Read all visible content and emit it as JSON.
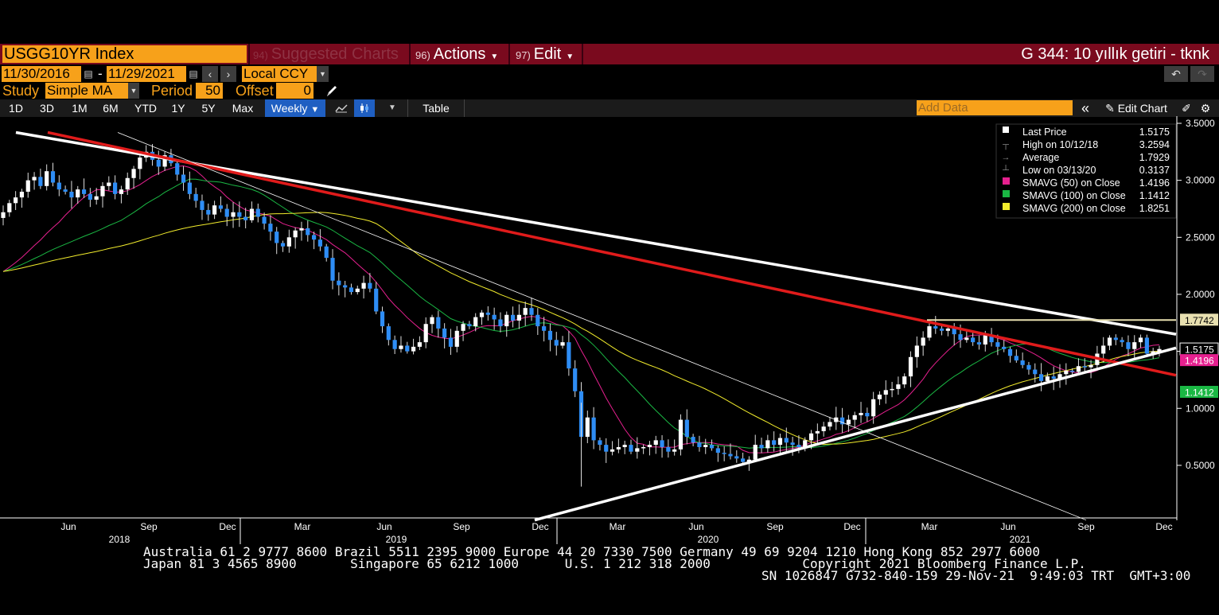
{
  "header": {
    "ticker": "USGG10YR Index",
    "menu_suggested_num": "94)",
    "menu_suggested": "Suggested Charts",
    "menu_actions_num": "96)",
    "menu_actions": "Actions",
    "menu_edit_num": "97)",
    "menu_edit": "Edit",
    "function_title": "G 344: 10 yıllık getiri - tknk"
  },
  "controls": {
    "start_date": "11/30/2016",
    "date_sep": "-",
    "end_date": "11/29/2021",
    "currency": "Local CCY",
    "study_label": "Study",
    "study_value": "Simple MA",
    "period_label": "Period",
    "period_value": "50",
    "offset_label": "Offset",
    "offset_value": "0"
  },
  "toolbar": {
    "ranges": [
      "1D",
      "3D",
      "1M",
      "6M",
      "YTD",
      "1Y",
      "5Y",
      "Max"
    ],
    "frequency": "Weekly",
    "table_label": "Table",
    "add_data_placeholder": "Add Data",
    "edit_chart_label": "Edit Chart",
    "collapse_glyph": "«"
  },
  "legend": [
    {
      "label": "Last Price",
      "value": "1.5175",
      "color": "#ffffff"
    },
    {
      "label": "High on 10/12/18",
      "value": "3.2594",
      "color": "#888888"
    },
    {
      "label": "Average",
      "value": "1.7929",
      "color": "#888888"
    },
    {
      "label": "Low on 03/13/20",
      "value": "0.3137",
      "color": "#888888"
    },
    {
      "label": "SMAVG (50)  on Close",
      "value": "1.4196",
      "color": "#e6208f"
    },
    {
      "label": "SMAVG (100)  on Close",
      "value": "1.1412",
      "color": "#1ab844"
    },
    {
      "label": "SMAVG (200)  on Close",
      "value": "1.8251",
      "color": "#f2ec2c"
    }
  ],
  "chart_data": {
    "type": "candlestick",
    "y_ticks": [
      "3.5000",
      "3.0000",
      "2.5000",
      "2.0000",
      "1.5000",
      "1.0000",
      "0.5000"
    ],
    "ylim": [
      0.0,
      3.5
    ],
    "x_ticks_month": [
      "Jun",
      "Sep",
      "Dec",
      "Mar",
      "Jun",
      "Sep",
      "Dec",
      "Mar",
      "Jun",
      "Sep",
      "Dec",
      "Mar",
      "Jun",
      "Sep",
      "Dec"
    ],
    "x_ticks_year": [
      "2018",
      "2019",
      "2020",
      "2021"
    ],
    "price_tags": [
      {
        "value": "1.7742",
        "color": "#e8e0b0",
        "text_color": "#000000"
      },
      {
        "value": "1.5175",
        "color": "#000000",
        "text_color": "#ffffff"
      },
      {
        "value": "1.4196",
        "color": "#e6208f",
        "text_color": "#ffffff"
      },
      {
        "value": "1.1412",
        "color": "#1ab844",
        "text_color": "#ffffff"
      }
    ],
    "weekly_close": [
      2.72,
      2.8,
      2.85,
      2.9,
      3.0,
      3.03,
      2.95,
      3.08,
      2.98,
      2.92,
      2.9,
      2.85,
      2.92,
      2.88,
      2.83,
      2.86,
      2.95,
      2.98,
      2.88,
      2.92,
      3.02,
      3.1,
      3.2,
      3.25,
      3.18,
      3.12,
      3.22,
      3.15,
      3.05,
      2.98,
      2.88,
      2.82,
      2.74,
      2.7,
      2.78,
      2.75,
      2.68,
      2.72,
      2.68,
      2.65,
      2.75,
      2.68,
      2.62,
      2.55,
      2.45,
      2.42,
      2.5,
      2.56,
      2.58,
      2.52,
      2.48,
      2.42,
      2.32,
      2.12,
      2.08,
      2.06,
      2.02,
      2.05,
      2.1,
      2.05,
      1.85,
      1.72,
      1.6,
      1.52,
      1.55,
      1.5,
      1.54,
      1.58,
      1.74,
      1.8,
      1.7,
      1.62,
      1.54,
      1.68,
      1.74,
      1.72,
      1.8,
      1.84,
      1.82,
      1.78,
      1.72,
      1.82,
      1.77,
      1.82,
      1.88,
      1.82,
      1.72,
      1.68,
      1.6,
      1.55,
      1.58,
      1.35,
      1.15,
      0.75,
      0.92,
      0.72,
      0.68,
      0.62,
      0.64,
      0.66,
      0.68,
      0.62,
      0.65,
      0.66,
      0.68,
      0.72,
      0.66,
      0.62,
      0.64,
      0.9,
      0.75,
      0.7,
      0.66,
      0.68,
      0.65,
      0.61,
      0.6,
      0.58,
      0.56,
      0.53,
      0.55,
      0.68,
      0.65,
      0.72,
      0.68,
      0.74,
      0.7,
      0.68,
      0.66,
      0.72,
      0.78,
      0.8,
      0.84,
      0.88,
      0.92,
      0.86,
      0.9,
      0.94,
      0.96,
      0.93,
      1.08,
      1.12,
      1.16,
      1.17,
      1.21,
      1.28,
      1.45,
      1.55,
      1.62,
      1.72,
      1.7,
      1.68,
      1.7,
      1.65,
      1.6,
      1.62,
      1.58,
      1.56,
      1.64,
      1.58,
      1.54,
      1.52,
      1.46,
      1.42,
      1.38,
      1.34,
      1.3,
      1.24,
      1.28,
      1.26,
      1.3,
      1.33,
      1.32,
      1.37,
      1.36,
      1.38,
      1.48,
      1.55,
      1.62,
      1.6,
      1.58,
      1.52,
      1.58,
      1.62,
      1.48,
      1.5,
      1.52
    ]
  }
}
